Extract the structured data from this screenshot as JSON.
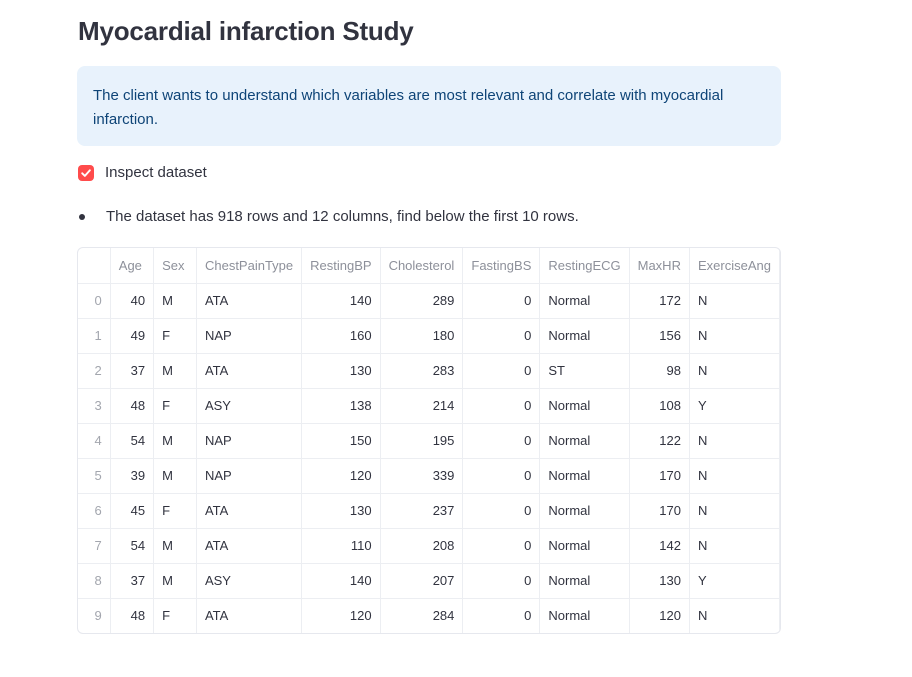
{
  "page": {
    "title": "Myocardial infarction Study"
  },
  "info": {
    "text": "The client wants to understand which variables are most relevant and correlate with myocardial infarction."
  },
  "checkbox": {
    "label": "Inspect dataset",
    "checked": true,
    "color": "#ff4b4b"
  },
  "bullet": {
    "text": "The dataset has 918 rows and 12 columns, find below the first 10 rows."
  },
  "table": {
    "columns": [
      "Age",
      "Sex",
      "ChestPainType",
      "RestingBP",
      "Cholesterol",
      "FastingBS",
      "RestingECG",
      "MaxHR",
      "ExerciseAng"
    ],
    "rows": [
      {
        "index": "0",
        "cells": [
          "40",
          "M",
          "ATA",
          "140",
          "289",
          "0",
          "Normal",
          "172",
          "N"
        ]
      },
      {
        "index": "1",
        "cells": [
          "49",
          "F",
          "NAP",
          "160",
          "180",
          "0",
          "Normal",
          "156",
          "N"
        ]
      },
      {
        "index": "2",
        "cells": [
          "37",
          "M",
          "ATA",
          "130",
          "283",
          "0",
          "ST",
          "98",
          "N"
        ]
      },
      {
        "index": "3",
        "cells": [
          "48",
          "F",
          "ASY",
          "138",
          "214",
          "0",
          "Normal",
          "108",
          "Y"
        ]
      },
      {
        "index": "4",
        "cells": [
          "54",
          "M",
          "NAP",
          "150",
          "195",
          "0",
          "Normal",
          "122",
          "N"
        ]
      },
      {
        "index": "5",
        "cells": [
          "39",
          "M",
          "NAP",
          "120",
          "339",
          "0",
          "Normal",
          "170",
          "N"
        ]
      },
      {
        "index": "6",
        "cells": [
          "45",
          "F",
          "ATA",
          "130",
          "237",
          "0",
          "Normal",
          "170",
          "N"
        ]
      },
      {
        "index": "7",
        "cells": [
          "54",
          "M",
          "ATA",
          "110",
          "208",
          "0",
          "Normal",
          "142",
          "N"
        ]
      },
      {
        "index": "8",
        "cells": [
          "37",
          "M",
          "ASY",
          "140",
          "207",
          "0",
          "Normal",
          "130",
          "Y"
        ]
      },
      {
        "index": "9",
        "cells": [
          "48",
          "F",
          "ATA",
          "120",
          "284",
          "0",
          "Normal",
          "120",
          "N"
        ]
      }
    ]
  }
}
